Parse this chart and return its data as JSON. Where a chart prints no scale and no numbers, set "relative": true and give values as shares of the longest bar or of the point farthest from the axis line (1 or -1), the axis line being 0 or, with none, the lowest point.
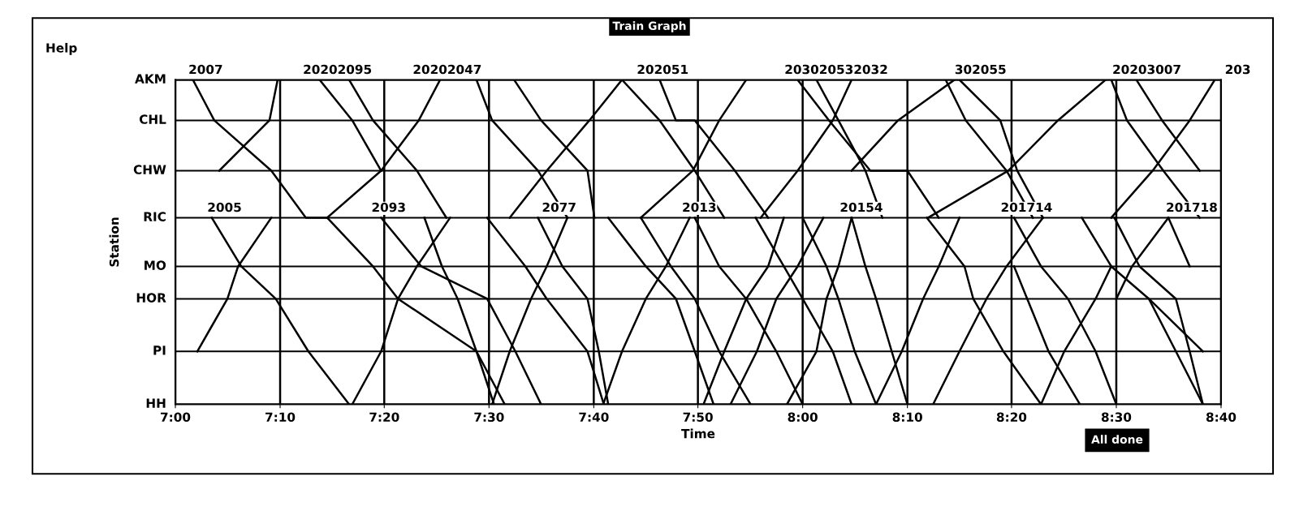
{
  "chart_data": {
    "type": "line",
    "title": "Train Graph",
    "xlabel": "Time",
    "ylabel": "Station",
    "relative": true,
    "xlim": [
      7.0,
      8.667
    ],
    "xticks": [
      {
        "value": 7.0,
        "label": "7:00"
      },
      {
        "value": 7.167,
        "label": "7:10"
      },
      {
        "value": 7.333,
        "label": "7:20"
      },
      {
        "value": 7.5,
        "label": "7:30"
      },
      {
        "value": 7.667,
        "label": "7:40"
      },
      {
        "value": 7.833,
        "label": "7:50"
      },
      {
        "value": 8.0,
        "label": "8:00"
      },
      {
        "value": 8.167,
        "label": "8:10"
      },
      {
        "value": 8.333,
        "label": "8:20"
      },
      {
        "value": 8.5,
        "label": "8:30"
      },
      {
        "value": 8.667,
        "label": "8:40"
      }
    ],
    "ref_lines": [
      {
        "axis": "y",
        "value": 0,
        "label": "HH"
      },
      {
        "axis": "y",
        "value": 0.163,
        "label": "PI"
      },
      {
        "axis": "y",
        "value": 0.325,
        "label": "HOR"
      },
      {
        "axis": "y",
        "value": 0.425,
        "label": "MO"
      },
      {
        "axis": "y",
        "value": 0.575,
        "label": "RIC"
      },
      {
        "axis": "y",
        "value": 0.72,
        "label": "CHW"
      },
      {
        "axis": "y",
        "value": 0.875,
        "label": "CHL"
      },
      {
        "axis": "y",
        "value": 1,
        "label": "AKM"
      }
    ],
    "grid": "x",
    "marker": "none",
    "line_style": "solid",
    "series": [
      {
        "color": "#000000",
        "x": [
          7.028,
          7.062,
          7.153,
          7.208,
          7.242,
          7.315,
          7.355,
          7.48,
          7.525
        ],
        "values": [
          1,
          0.875,
          0.72,
          0.575,
          0.575,
          0.425,
          0.325,
          0.163,
          0
        ]
      },
      {
        "color": "#000000",
        "x": [
          7.07,
          7.15,
          7.163
        ],
        "values": [
          0.72,
          0.875,
          1
        ]
      },
      {
        "color": "#000000",
        "x": [
          7.058,
          7.105,
          7.16,
          7.212,
          7.277
        ],
        "values": [
          0.575,
          0.425,
          0.325,
          0.163,
          0
        ]
      },
      {
        "color": "#000000",
        "x": [
          7.035,
          7.083,
          7.1,
          7.153
        ],
        "values": [
          0.163,
          0.325,
          0.425,
          0.575
        ]
      },
      {
        "color": "#000000",
        "x": [
          7.282,
          7.328,
          7.355,
          7.385,
          7.438
        ],
        "values": [
          0,
          0.163,
          0.325,
          0.425,
          0.575
        ]
      },
      {
        "color": "#000000",
        "x": [
          7.328,
          7.392,
          7.497,
          7.542,
          7.583
        ],
        "values": [
          0.575,
          0.425,
          0.325,
          0.163,
          0
        ]
      },
      {
        "color": "#000000",
        "x": [
          7.397,
          7.425,
          7.45,
          7.48,
          7.508
        ],
        "values": [
          0.575,
          0.425,
          0.325,
          0.163,
          0
        ]
      },
      {
        "color": "#000000",
        "x": [
          7.23,
          7.282,
          7.328
        ],
        "values": [
          1,
          0.875,
          0.72
        ]
      },
      {
        "color": "#000000",
        "x": [
          7.277,
          7.315,
          7.385,
          7.432
        ],
        "values": [
          1,
          0.875,
          0.72,
          0.575
        ]
      },
      {
        "color": "#000000",
        "x": [
          7.242,
          7.328,
          7.388,
          7.422
        ],
        "values": [
          0.575,
          0.72,
          0.875,
          1
        ]
      },
      {
        "color": "#000000",
        "x": [
          7.48,
          7.505,
          7.578,
          7.625
        ],
        "values": [
          1,
          0.875,
          0.72,
          0.575
        ]
      },
      {
        "color": "#000000",
        "x": [
          7.54,
          7.583,
          7.657,
          7.668
        ],
        "values": [
          1,
          0.875,
          0.72,
          0.575
        ]
      },
      {
        "color": "#000000",
        "x": [
          7.533,
          7.592,
          7.66,
          7.712
        ],
        "values": [
          0.575,
          0.72,
          0.875,
          1
        ]
      },
      {
        "color": "#000000",
        "x": [
          7.712,
          7.772,
          7.828,
          7.875
        ],
        "values": [
          1,
          0.875,
          0.72,
          0.575
        ]
      },
      {
        "color": "#000000",
        "x": [
          7.772,
          7.798,
          7.828,
          7.892,
          7.945
        ],
        "values": [
          1,
          0.875,
          0.875,
          0.72,
          0.575
        ]
      },
      {
        "color": "#000000",
        "x": [
          7.742,
          7.825,
          7.867,
          7.91
        ],
        "values": [
          0.575,
          0.72,
          0.875,
          1
        ]
      },
      {
        "color": "#000000",
        "x": [
          7.933,
          7.992,
          8.048,
          8.078
        ],
        "values": [
          0.575,
          0.72,
          0.875,
          1
        ]
      },
      {
        "color": "#000000",
        "x": [
          7.992,
          8.042,
          8.108,
          8.167,
          8.217
        ],
        "values": [
          1,
          0.875,
          0.72,
          0.72,
          0.575
        ]
      },
      {
        "color": "#000000",
        "x": [
          8.022,
          8.057,
          8.1,
          8.127
        ],
        "values": [
          1,
          0.875,
          0.72,
          0.575
        ]
      },
      {
        "color": "#000000",
        "x": [
          8.078,
          8.152,
          8.242
        ],
        "values": [
          0.72,
          0.875,
          1
        ]
      },
      {
        "color": "#000000",
        "x": [
          8.228,
          8.26,
          8.325,
          8.367
        ],
        "values": [
          1,
          0.875,
          0.72,
          0.575
        ]
      },
      {
        "color": "#000000",
        "x": [
          8.25,
          8.315,
          8.342,
          8.383
        ],
        "values": [
          1,
          0.875,
          0.72,
          0.575
        ]
      },
      {
        "color": "#000000",
        "x": [
          8.2,
          8.328,
          8.407,
          8.483
        ],
        "values": [
          0.575,
          0.72,
          0.875,
          1
        ]
      },
      {
        "color": "#000000",
        "x": [
          8.492,
          8.558,
          8.617,
          8.657
        ],
        "values": [
          0.575,
          0.72,
          0.875,
          1
        ]
      },
      {
        "color": "#000000",
        "x": [
          8.532,
          8.573,
          8.633
        ],
        "values": [
          1,
          0.875,
          0.72
        ]
      },
      {
        "color": "#000000",
        "x": [
          8.492,
          8.517,
          8.575,
          8.633
        ],
        "values": [
          1,
          0.875,
          0.72,
          0.575
        ]
      },
      {
        "color": "#000000",
        "x": [
          7.497,
          7.558,
          7.592,
          7.657,
          7.683
        ],
        "values": [
          0.575,
          0.425,
          0.325,
          0.163,
          0
        ]
      },
      {
        "color": "#000000",
        "x": [
          7.578,
          7.617,
          7.657,
          7.675,
          7.69
        ],
        "values": [
          0.575,
          0.425,
          0.325,
          0.163,
          0
        ]
      },
      {
        "color": "#000000",
        "x": [
          7.505,
          7.533,
          7.567,
          7.592,
          7.625
        ],
        "values": [
          0,
          0.163,
          0.325,
          0.425,
          0.575
        ]
      },
      {
        "color": "#000000",
        "x": [
          7.69,
          7.75,
          7.798,
          7.828,
          7.858
        ],
        "values": [
          0.575,
          0.425,
          0.325,
          0.163,
          0
        ]
      },
      {
        "color": "#000000",
        "x": [
          7.742,
          7.79,
          7.828,
          7.867,
          7.917
        ],
        "values": [
          0.575,
          0.425,
          0.325,
          0.163,
          0
        ]
      },
      {
        "color": "#000000",
        "x": [
          7.682,
          7.712,
          7.75,
          7.782,
          7.82
        ],
        "values": [
          0,
          0.163,
          0.325,
          0.425,
          0.575
        ]
      },
      {
        "color": "#000000",
        "x": [
          7.828,
          7.867,
          7.91,
          7.958,
          8.0
        ],
        "values": [
          0.575,
          0.425,
          0.325,
          0.163,
          0
        ]
      },
      {
        "color": "#000000",
        "x": [
          7.842,
          7.875,
          7.91,
          7.945,
          7.97
        ],
        "values": [
          0,
          0.163,
          0.325,
          0.425,
          0.575
        ]
      },
      {
        "color": "#000000",
        "x": [
          7.885,
          7.927,
          7.958,
          7.992,
          8.033
        ],
        "values": [
          0,
          0.163,
          0.325,
          0.425,
          0.575
        ]
      },
      {
        "color": "#000000",
        "x": [
          7.925,
          7.97,
          8.0,
          8.048,
          8.078
        ],
        "values": [
          0.575,
          0.425,
          0.325,
          0.163,
          0
        ]
      },
      {
        "color": "#000000",
        "x": [
          8.0,
          8.038,
          8.057,
          8.083,
          8.117
        ],
        "values": [
          0.575,
          0.425,
          0.325,
          0.163,
          0
        ]
      },
      {
        "color": "#000000",
        "x": [
          7.975,
          8.022,
          8.038,
          8.057,
          8.078
        ],
        "values": [
          0,
          0.163,
          0.325,
          0.425,
          0.575
        ]
      },
      {
        "color": "#000000",
        "x": [
          8.078,
          8.1,
          8.117,
          8.142,
          8.167
        ],
        "values": [
          0.575,
          0.425,
          0.325,
          0.163,
          0
        ]
      },
      {
        "color": "#000000",
        "x": [
          8.117,
          8.158,
          8.192,
          8.217,
          8.25
        ],
        "values": [
          0,
          0.163,
          0.325,
          0.425,
          0.575
        ]
      },
      {
        "color": "#000000",
        "x": [
          8.198,
          8.258,
          8.272,
          8.32,
          8.38
        ],
        "values": [
          0.575,
          0.425,
          0.325,
          0.163,
          0
        ]
      },
      {
        "color": "#000000",
        "x": [
          8.208,
          8.25,
          8.293,
          8.325,
          8.383
        ],
        "values": [
          0,
          0.163,
          0.325,
          0.425,
          0.575
        ]
      },
      {
        "color": "#000000",
        "x": [
          8.337,
          8.38,
          8.423,
          8.467,
          8.5
        ],
        "values": [
          0.575,
          0.425,
          0.325,
          0.163,
          0
        ]
      },
      {
        "color": "#000000",
        "x": [
          8.445,
          8.492,
          8.552,
          8.638
        ],
        "values": [
          0.575,
          0.425,
          0.325,
          0.163
        ]
      },
      {
        "color": "#000000",
        "x": [
          8.497,
          8.537,
          8.595,
          8.617,
          8.638
        ],
        "values": [
          0.575,
          0.425,
          0.325,
          0.163,
          0
        ]
      },
      {
        "color": "#000000",
        "x": [
          8.5,
          8.525,
          8.583
        ],
        "values": [
          0.325,
          0.425,
          0.575
        ]
      },
      {
        "color": "#000000",
        "x": [
          8.583,
          8.617
        ],
        "values": [
          0.575,
          0.425
        ]
      },
      {
        "color": "#000000",
        "x": [
          8.337,
          8.358,
          8.392,
          8.442
        ],
        "values": [
          0.425,
          0.325,
          0.163,
          0
        ]
      },
      {
        "color": "#000000",
        "x": [
          8.38,
          8.417,
          8.467,
          8.492
        ],
        "values": [
          0,
          0.163,
          0.325,
          0.425
        ]
      },
      {
        "color": "#000000",
        "x": [
          8.552,
          8.595,
          8.638
        ],
        "values": [
          0.325,
          0.163,
          0
        ]
      }
    ],
    "annotations": [
      "Help",
      "All done",
      "2007",
      "20202095",
      "20202047",
      "202051",
      "203020532032",
      "302055",
      "20203007",
      "203",
      "2005",
      "2093",
      "2077",
      "2013",
      "20154",
      "201714",
      "201718"
    ]
  }
}
